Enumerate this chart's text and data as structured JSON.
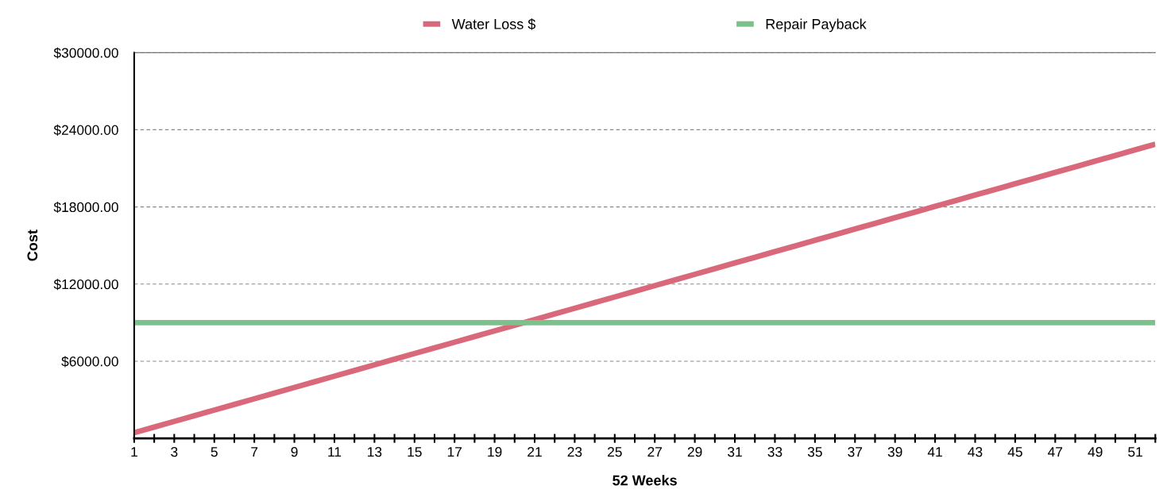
{
  "chart_data": {
    "type": "line",
    "xlabel": "52 Weeks",
    "ylabel": "Cost",
    "categories": [
      "1",
      null,
      "3",
      null,
      "5",
      null,
      "7",
      null,
      "9",
      null,
      "11",
      null,
      "13",
      null,
      "15",
      null,
      "17",
      null,
      "19",
      null,
      "21",
      null,
      "23",
      null,
      "25",
      null,
      "27",
      null,
      "29",
      null,
      "31",
      null,
      "33",
      null,
      "35",
      null,
      "37",
      null,
      "39",
      null,
      "41",
      null,
      "43",
      null,
      "45",
      null,
      "47",
      null,
      "49",
      null,
      "51",
      null
    ],
    "series": [
      {
        "name": "Water Loss $",
        "color": "#d9687a",
        "values": [
          440,
          880,
          1320,
          1760,
          2200,
          2640,
          3080,
          3520,
          3960,
          4400,
          4840,
          5280,
          5720,
          6160,
          6600,
          7040,
          7480,
          7920,
          8360,
          8800,
          9240,
          9680,
          10120,
          10560,
          11000,
          11440,
          11880,
          12320,
          12760,
          13200,
          13640,
          14080,
          14520,
          14960,
          15400,
          15840,
          16280,
          16720,
          17160,
          17600,
          18040,
          18480,
          18920,
          19360,
          19800,
          20240,
          20680,
          21120,
          21560,
          22000,
          22440,
          22880
        ]
      },
      {
        "name": "Repair Payback",
        "color": "#7cc08c",
        "values": [
          9000,
          9000,
          9000,
          9000,
          9000,
          9000,
          9000,
          9000,
          9000,
          9000,
          9000,
          9000,
          9000,
          9000,
          9000,
          9000,
          9000,
          9000,
          9000,
          9000,
          9000,
          9000,
          9000,
          9000,
          9000,
          9000,
          9000,
          9000,
          9000,
          9000,
          9000,
          9000,
          9000,
          9000,
          9000,
          9000,
          9000,
          9000,
          9000,
          9000,
          9000,
          9000,
          9000,
          9000,
          9000,
          9000,
          9000,
          9000,
          9000,
          9000,
          9000,
          9000
        ]
      }
    ],
    "ylim": [
      0,
      30000
    ],
    "yticks": [
      {
        "value": 6000,
        "label": "$6000.00"
      },
      {
        "value": 12000,
        "label": "$12000.00"
      },
      {
        "value": 18000,
        "label": "$18000.00"
      },
      {
        "value": 24000,
        "label": "$24000.00"
      },
      {
        "value": 30000,
        "label": "$30000.00"
      }
    ],
    "grid": "y",
    "legend": "top",
    "marker": "none",
    "line_style": "solid"
  }
}
